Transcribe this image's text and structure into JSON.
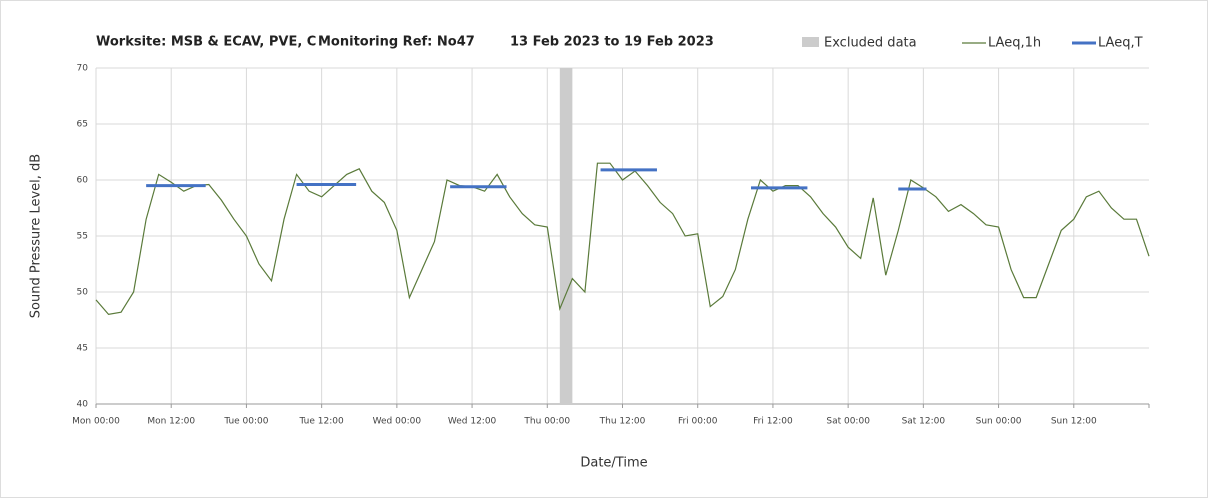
{
  "chart_data": {
    "type": "line",
    "title": "Worksite: MSB & ECAV, PVE, C",
    "monitoring_ref": "Monitoring Ref: No47",
    "period": "13 Feb 2023 to 19 Feb 2023",
    "x_label": "Date/Time",
    "y_label": "Sound Pressure Level, dB",
    "excluded": {
      "name": "Excluded data",
      "color": "#cccccc",
      "xrange": [
        74,
        76
      ]
    },
    "x": [
      0,
      2,
      4,
      6,
      8,
      10,
      12,
      14,
      16,
      18,
      20,
      22,
      24,
      26,
      28,
      30,
      32,
      34,
      36,
      38,
      40,
      42,
      44,
      46,
      48,
      50,
      52,
      54,
      56,
      58,
      60,
      62,
      64,
      66,
      68,
      70,
      72,
      74,
      76,
      78,
      80,
      82,
      84,
      86,
      88,
      90,
      92,
      94,
      96,
      98,
      100,
      102,
      104,
      106,
      108,
      110,
      112,
      114,
      116,
      118,
      120,
      122,
      124,
      126,
      128,
      130,
      132,
      134,
      136,
      138,
      140,
      142,
      144,
      146,
      148,
      150,
      152,
      154,
      156,
      158,
      160,
      162,
      164,
      166,
      168
    ],
    "series": [
      {
        "name": "LAeq,1h",
        "color": "#5a7a3a",
        "values": [
          49.3,
          48.0,
          48.2,
          50.0,
          56.5,
          60.5,
          59.8,
          59.0,
          59.5,
          59.6,
          58.2,
          56.5,
          55.0,
          52.5,
          51.0,
          56.5,
          60.5,
          59.0,
          58.5,
          59.5,
          60.5,
          61.0,
          59.0,
          58.0,
          55.5,
          49.5,
          52.0,
          54.5,
          60.0,
          59.5,
          59.4,
          59.0,
          60.5,
          58.5,
          57.0,
          56.0,
          55.8,
          48.5,
          51.2,
          50.0,
          61.5,
          61.5,
          60.0,
          60.8,
          59.5,
          58.0,
          57.0,
          55.0,
          55.2,
          48.7,
          49.6,
          52.0,
          56.5,
          60.0,
          59.0,
          59.5,
          59.5,
          58.5,
          57.0,
          55.8,
          54.0,
          53.0,
          58.4,
          51.5,
          55.5,
          60.0,
          59.3,
          58.5,
          57.2,
          57.8,
          57.0,
          56.0,
          55.8,
          52.0,
          49.5,
          49.5,
          52.5,
          55.5,
          56.5,
          58.5,
          59.0,
          57.5,
          56.5,
          56.5,
          53.2
        ]
      },
      {
        "name": "LAeq,T",
        "color": "#4472c4",
        "x": [
          8,
          17.5,
          24,
          32,
          41.5,
          48,
          56.5,
          65.5,
          72,
          80.5,
          89.5,
          96,
          104.5,
          113.5,
          120,
          128,
          132.5
        ],
        "values": [
          59.5,
          59.5,
          null,
          59.6,
          59.6,
          null,
          59.4,
          59.4,
          null,
          60.9,
          60.9,
          null,
          59.3,
          59.3,
          null,
          59.2,
          59.2
        ]
      }
    ],
    "xlim": [
      0,
      168
    ],
    "xticks": [
      {
        "value": 0,
        "label": "Mon 00:00"
      },
      {
        "value": 12,
        "label": "Mon 12:00"
      },
      {
        "value": 24,
        "label": "Tue 00:00"
      },
      {
        "value": 36,
        "label": "Tue 12:00"
      },
      {
        "value": 48,
        "label": "Wed 00:00"
      },
      {
        "value": 60,
        "label": "Wed 12:00"
      },
      {
        "value": 72,
        "label": "Thu 00:00"
      },
      {
        "value": 84,
        "label": "Thu 12:00"
      },
      {
        "value": 96,
        "label": "Fri 00:00"
      },
      {
        "value": 108,
        "label": "Fri 12:00"
      },
      {
        "value": 120,
        "label": "Sat 00:00"
      },
      {
        "value": 132,
        "label": "Sat 12:00"
      },
      {
        "value": 144,
        "label": "Sun 00:00"
      },
      {
        "value": 156,
        "label": "Sun 12:00"
      }
    ],
    "ylim": [
      40,
      70
    ],
    "yticks": [
      40,
      45,
      50,
      55,
      60,
      65,
      70
    ],
    "grid": true
  }
}
